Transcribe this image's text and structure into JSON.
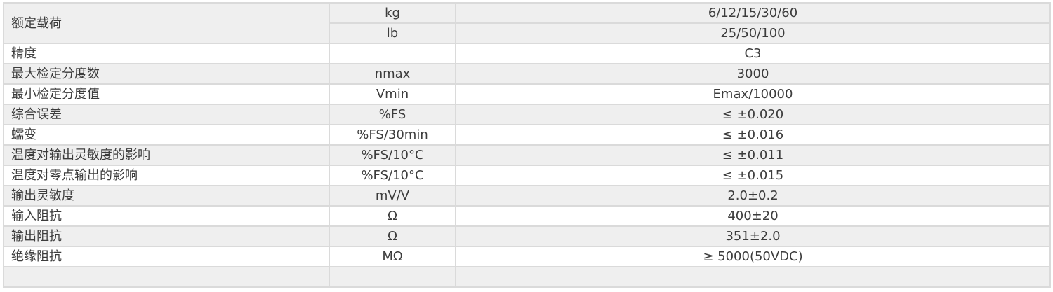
{
  "rated_load": {
    "label": "额定载荷",
    "rows": [
      {
        "unit": "kg",
        "value": "6/12/15/30/60"
      },
      {
        "unit": "lb",
        "value": "25/50/100"
      }
    ]
  },
  "rows": [
    {
      "param": "精度",
      "unit": "",
      "value": "C3"
    },
    {
      "param": "最大检定分度数",
      "unit": "nmax",
      "value": "3000"
    },
    {
      "param": "最小检定分度值",
      "unit": "Vmin",
      "value": "Emax/10000"
    },
    {
      "param": "综合误差",
      "unit": "%FS",
      "value": "≤ ±0.020"
    },
    {
      "param": "蠕变",
      "unit": "%FS/30min",
      "value": "≤ ±0.016"
    },
    {
      "param": "温度对输出灵敏度的影响",
      "unit": "%FS/10°C",
      "value": "≤ ±0.011"
    },
    {
      "param": "温度对零点输出的影响",
      "unit": "%FS/10°C",
      "value": "≤ ±0.015"
    },
    {
      "param": "输出灵敏度",
      "unit": "mV/V",
      "value": "2.0±0.2"
    },
    {
      "param": "输入阻抗",
      "unit": "Ω",
      "value": "400±20"
    },
    {
      "param": "输出阻抗",
      "unit": "Ω",
      "value": "351±2.0"
    },
    {
      "param": "绝缘阻抗",
      "unit": "MΩ",
      "value": "≥ 5000(50VDC)"
    }
  ]
}
